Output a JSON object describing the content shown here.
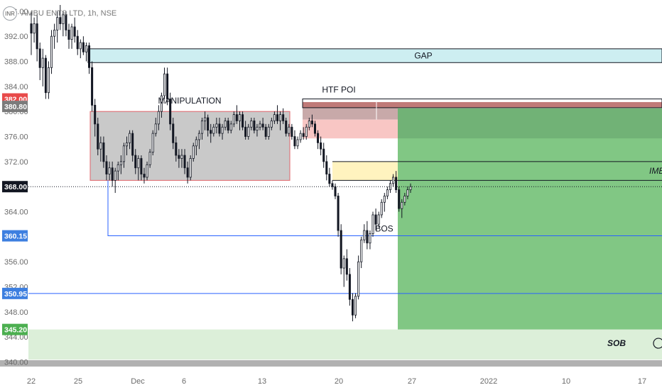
{
  "header": {
    "currency_badge": "INR",
    "symbol_text": "AMBU   ENTS LTD, 1h, NSE"
  },
  "colors": {
    "bull": "#131722",
    "bear": "#131722",
    "gap_fill": "#cdeef1",
    "manip_fill": "#c9c9c9",
    "manip_border": "#e0646a",
    "imb_fill": "#fff3bf",
    "poi_top": "#c8a9a9",
    "poi_pink": "#f8c6c4",
    "green_zone": "#81c784",
    "green_dark": "#6fae73",
    "red_strip": "#c07a78",
    "sob_fill": "#dcefd9",
    "line_blue": "#2962ff"
  },
  "chart_data": {
    "type": "candlestick",
    "title": "AMBU   ENTS LTD, 1h, NSE",
    "ylim": [
      339.5,
      397
    ],
    "y_ticks": [
      340,
      344,
      348,
      352,
      356,
      360,
      364,
      368,
      372,
      376,
      380,
      384,
      388,
      392,
      396
    ],
    "y_tick_labels": [
      "340.00",
      "344.00",
      "348.00",
      "352.00",
      "356.00",
      "360.00",
      "364.00",
      "368.00",
      "372.00",
      "376.00",
      "380.00",
      "384.00",
      "388.00",
      "392.00",
      "396.00"
    ],
    "x_ticks": [
      "22",
      "25",
      "Dec",
      "6",
      "13",
      "20",
      "27",
      "2022",
      "10",
      "17"
    ],
    "price_labels": [
      {
        "value": 382.0,
        "text": "382.00",
        "color": "#e84a4a"
      },
      {
        "value": 380.8,
        "text": "380.80",
        "color": "#7b7b7b"
      },
      {
        "value": 368.0,
        "text": "368.00",
        "color": "#131722"
      },
      {
        "value": 360.15,
        "text": "360.15",
        "color": "#3d7fe0"
      },
      {
        "value": 350.95,
        "text": "350.95",
        "color": "#3d7fe0"
      },
      {
        "value": 345.2,
        "text": "345.20",
        "color": "#4caf50"
      }
    ],
    "annotations": {
      "gap": "GAP",
      "manipulation": "MANIPULATION",
      "htf_poi": "HTF POI",
      "imb": "IMB",
      "bos": "BOS",
      "sob": "SOB"
    },
    "zones": {
      "gap": [
        387.8,
        390.0
      ],
      "manipulation": [
        369.0,
        380.0
      ],
      "imbalance": [
        369.0,
        372.0
      ],
      "htf_poi": [
        375.7,
        381.5
      ],
      "green_target": [
        345.2,
        380.5
      ],
      "sob": [
        340.4,
        345.2
      ]
    },
    "key_levels": {
      "current": 368.0,
      "bos": 360.15,
      "low_line": 350.95
    },
    "series": [
      {
        "points": [
          [
            394,
            396,
            389,
            392.5
          ],
          [
            392.5,
            395,
            391,
            394
          ],
          [
            394,
            395.5,
            388,
            390
          ],
          [
            390,
            391,
            385,
            387
          ],
          [
            387,
            390,
            384,
            388.5
          ],
          [
            388.5,
            389,
            382,
            383
          ],
          [
            383,
            388,
            382,
            387
          ],
          [
            387,
            393,
            386,
            392
          ],
          [
            392,
            394,
            390,
            393
          ],
          [
            393,
            396,
            391,
            395
          ],
          [
            395,
            397,
            393,
            394
          ],
          [
            394,
            396,
            392,
            395.5
          ],
          [
            395.5,
            396,
            392,
            393
          ],
          [
            393,
            394,
            390,
            391.5
          ],
          [
            391.5,
            394,
            390,
            393.5
          ],
          [
            393.5,
            395,
            391,
            392
          ],
          [
            392,
            393,
            389,
            390
          ],
          [
            390,
            391.5,
            388.5,
            391
          ],
          [
            391,
            392,
            389,
            389.5
          ],
          [
            389.5,
            391,
            388,
            390.5
          ],
          [
            390.5,
            391,
            386,
            387
          ],
          [
            387,
            388,
            380,
            381
          ],
          [
            381,
            382,
            376,
            378
          ],
          [
            378,
            379,
            373,
            374
          ],
          [
            374,
            376,
            372,
            375
          ],
          [
            375,
            376,
            371,
            372
          ],
          [
            372,
            373,
            369,
            370
          ],
          [
            370,
            372,
            369,
            371
          ],
          [
            371,
            372,
            368,
            369
          ],
          [
            369,
            371,
            367,
            370.5
          ],
          [
            370.5,
            372,
            369,
            371.5
          ],
          [
            371.5,
            373,
            370,
            372
          ],
          [
            372,
            375,
            371,
            374.5
          ],
          [
            374.5,
            376,
            373,
            375
          ],
          [
            375,
            377,
            374,
            376.5
          ],
          [
            376.5,
            377,
            372,
            373
          ],
          [
            373,
            374,
            370,
            371
          ],
          [
            371,
            373,
            369,
            372.5
          ],
          [
            372.5,
            373,
            369,
            370
          ],
          [
            370,
            371,
            368.5,
            369.5
          ],
          [
            369.5,
            372,
            369,
            371.5
          ],
          [
            371.5,
            374,
            371,
            373.5
          ],
          [
            373.5,
            377,
            373,
            376.5
          ],
          [
            376.5,
            379,
            376,
            378
          ],
          [
            378,
            381,
            377,
            380
          ],
          [
            380,
            383,
            379,
            382.5
          ],
          [
            382.5,
            387,
            382,
            386
          ],
          [
            386,
            387,
            381,
            382
          ],
          [
            382,
            383,
            377,
            378
          ],
          [
            378,
            379,
            374,
            375
          ],
          [
            375,
            376,
            372,
            373
          ],
          [
            373,
            374,
            371,
            372.5
          ],
          [
            372.5,
            374,
            371,
            373
          ],
          [
            373,
            374,
            370,
            371
          ],
          [
            371,
            372,
            368.5,
            369.5
          ],
          [
            369.5,
            373,
            369,
            372.5
          ],
          [
            372.5,
            375,
            372,
            374.5
          ],
          [
            374.5,
            376,
            373,
            375.5
          ],
          [
            375.5,
            377,
            374,
            376.5
          ],
          [
            376.5,
            379,
            375.5,
            378.5
          ],
          [
            378.5,
            380,
            377,
            379
          ],
          [
            379,
            379.5,
            376,
            377
          ],
          [
            377,
            378,
            375,
            376.5
          ],
          [
            376.5,
            378,
            376,
            377.5
          ],
          [
            377.5,
            379,
            376.5,
            378
          ],
          [
            378,
            379,
            376,
            376.5
          ],
          [
            376.5,
            378,
            375.5,
            377.5
          ],
          [
            377.5,
            379,
            377,
            378.5
          ],
          [
            378.5,
            379,
            376.5,
            377
          ],
          [
            377,
            378.5,
            376.5,
            378
          ],
          [
            378,
            380,
            377.5,
            379.5
          ],
          [
            379.5,
            381,
            378,
            378.5
          ],
          [
            378.5,
            380,
            377,
            379.5
          ],
          [
            379.5,
            380,
            377,
            377.5
          ],
          [
            377.5,
            378.5,
            375.5,
            376
          ],
          [
            376,
            378,
            375.5,
            377.5
          ],
          [
            377.5,
            379,
            377,
            378.5
          ],
          [
            378.5,
            379,
            376.5,
            377
          ],
          [
            377,
            378,
            376,
            377.5
          ],
          [
            377.5,
            378.5,
            377,
            378
          ],
          [
            378,
            379,
            377,
            377.5
          ],
          [
            377.5,
            378,
            375.5,
            376
          ],
          [
            376,
            378,
            375.5,
            377.5
          ],
          [
            377.5,
            379,
            377,
            378.5
          ],
          [
            378.5,
            380,
            378,
            379.5
          ],
          [
            379.5,
            381,
            378,
            378.5
          ],
          [
            378.5,
            380,
            377,
            379.5
          ],
          [
            379.5,
            380.5,
            378,
            378.5
          ],
          [
            378.5,
            379,
            376,
            376.5
          ],
          [
            376.5,
            378,
            376,
            377.5
          ],
          [
            377.5,
            378,
            375.5,
            376
          ],
          [
            376,
            377,
            374,
            374.5
          ],
          [
            374.5,
            376,
            374,
            375.5
          ],
          [
            375.5,
            377,
            375,
            376.5
          ],
          [
            376.5,
            377.5,
            375.5,
            376
          ],
          [
            376,
            378,
            375.5,
            377.5
          ],
          [
            377.5,
            379,
            377,
            378.5
          ],
          [
            378.5,
            379.5,
            377.5,
            378
          ],
          [
            378,
            378.5,
            376,
            376.5
          ],
          [
            376.5,
            377,
            374,
            375
          ],
          [
            375,
            376,
            373,
            374
          ],
          [
            374,
            375,
            371,
            372
          ],
          [
            372,
            373,
            369,
            370
          ],
          [
            370,
            371,
            368,
            368.5
          ],
          [
            368.5,
            369,
            367.5,
            368
          ],
          [
            368,
            368.5,
            366,
            366.5
          ],
          [
            366.5,
            367,
            360,
            361
          ],
          [
            361,
            362,
            354,
            355
          ],
          [
            355,
            357,
            352,
            356.5
          ],
          [
            356.5,
            358,
            353,
            354
          ],
          [
            354,
            355,
            349,
            350
          ],
          [
            350,
            351,
            346.5,
            347.5
          ],
          [
            347.5,
            351,
            347,
            350.5
          ],
          [
            350.5,
            357,
            350,
            356
          ],
          [
            356,
            360,
            355,
            359.5
          ],
          [
            359.5,
            362,
            359,
            361
          ],
          [
            361,
            362.5,
            358,
            359
          ],
          [
            359,
            361,
            358,
            360.5
          ],
          [
            360.5,
            364,
            360,
            363.5
          ],
          [
            363.5,
            364.5,
            361,
            362
          ],
          [
            362,
            364,
            361.5,
            363.5
          ],
          [
            363.5,
            366,
            363,
            365.5
          ],
          [
            365.5,
            367,
            364,
            366.5
          ],
          [
            366.5,
            368,
            366,
            367.5
          ],
          [
            367.5,
            369,
            367,
            368.5
          ],
          [
            368.5,
            370,
            368,
            369.5
          ],
          [
            369.5,
            370.5,
            367,
            367.5
          ],
          [
            367.5,
            368,
            364,
            364.5
          ],
          [
            364.5,
            366,
            363,
            365.5
          ],
          [
            365.5,
            367,
            365,
            366.5
          ],
          [
            366.5,
            368,
            366,
            367.5
          ],
          [
            367.5,
            368.5,
            367,
            368
          ]
        ]
      }
    ]
  }
}
